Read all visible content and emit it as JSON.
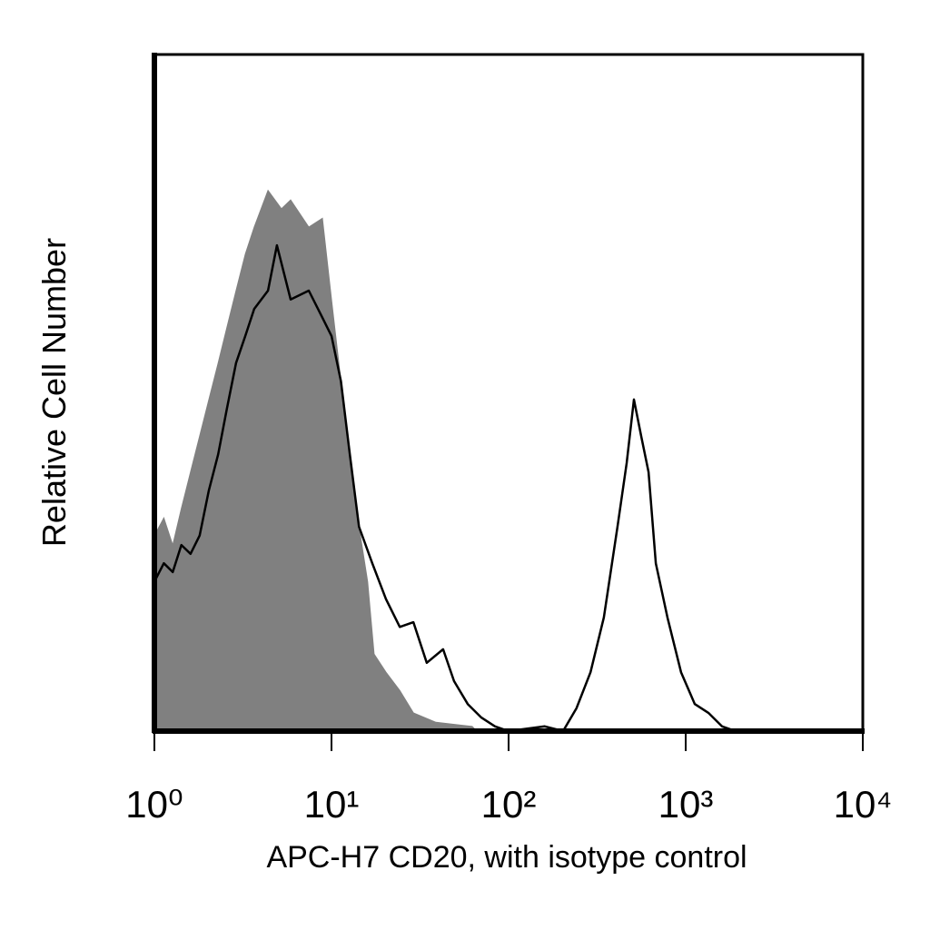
{
  "chart_data": {
    "type": "histogram_overlay",
    "x_label": "APC-H7 CD20, with isotype control",
    "y_label": "Relative Cell Number",
    "xscale": "log",
    "xlim": [
      1,
      10000
    ],
    "xticks": [
      {
        "value": 1,
        "label": "10⁰"
      },
      {
        "value": 10,
        "label": "10¹"
      },
      {
        "value": 100,
        "label": "10²"
      },
      {
        "value": 1000,
        "label": "10³"
      },
      {
        "value": 10000,
        "label": "10⁴"
      }
    ],
    "ylim": [
      0,
      100
    ],
    "series": [
      {
        "color": "#808080",
        "filled": true,
        "x": [
          1,
          1.13,
          1.27,
          1.42,
          1.6,
          1.8,
          2.03,
          2.29,
          2.57,
          2.89,
          3.26,
          3.66,
          4.38,
          5.22,
          5.88,
          7.44,
          8.89,
          10,
          11.3,
          12.7,
          14.3,
          16,
          17.4,
          20.3,
          24.3,
          29,
          38.9,
          62.3,
          66.2
        ],
        "values": [
          28.9,
          31.5,
          27.5,
          32.9,
          38.3,
          43.6,
          49,
          54.4,
          59.7,
          65.1,
          70.5,
          74.5,
          79.9,
          77.2,
          78.5,
          74.5,
          75.8,
          63.8,
          51.7,
          40.9,
          30.2,
          22.1,
          11.4,
          8.7,
          6,
          2.7,
          1.3,
          0.7,
          0
        ]
      },
      {
        "color": "#000000",
        "filled": false,
        "x": [
          1,
          1.13,
          1.27,
          1.42,
          1.6,
          1.8,
          2.03,
          2.29,
          2.57,
          2.89,
          3.26,
          3.66,
          4.38,
          4.92,
          5.88,
          7.44,
          8.89,
          10,
          11.3,
          12.7,
          14.3,
          17,
          20.3,
          24.3,
          29,
          34.5,
          42.7,
          49.2,
          58.8,
          70.2,
          83.8,
          100,
          160,
          203,
          242,
          290,
          345,
          412,
          464,
          510,
          561,
          617,
          678,
          789,
          942,
          1125,
          1343,
          1603,
          1914,
          10000
        ],
        "values": [
          22.1,
          24.8,
          23.5,
          27.5,
          26.2,
          28.9,
          35.6,
          40.9,
          47.7,
          54.4,
          58.4,
          62.4,
          65.1,
          71.8,
          63.8,
          65.1,
          61.1,
          58.4,
          51.7,
          40.9,
          30.2,
          24.8,
          19.5,
          15.4,
          16.1,
          10.1,
          12.1,
          7.4,
          4,
          2,
          0.7,
          0,
          0.7,
          0,
          3.4,
          8.7,
          16.8,
          30.2,
          39.6,
          49,
          43.6,
          38.3,
          24.8,
          16.8,
          8.7,
          4,
          2.7,
          0.7,
          0,
          0
        ]
      }
    ]
  }
}
